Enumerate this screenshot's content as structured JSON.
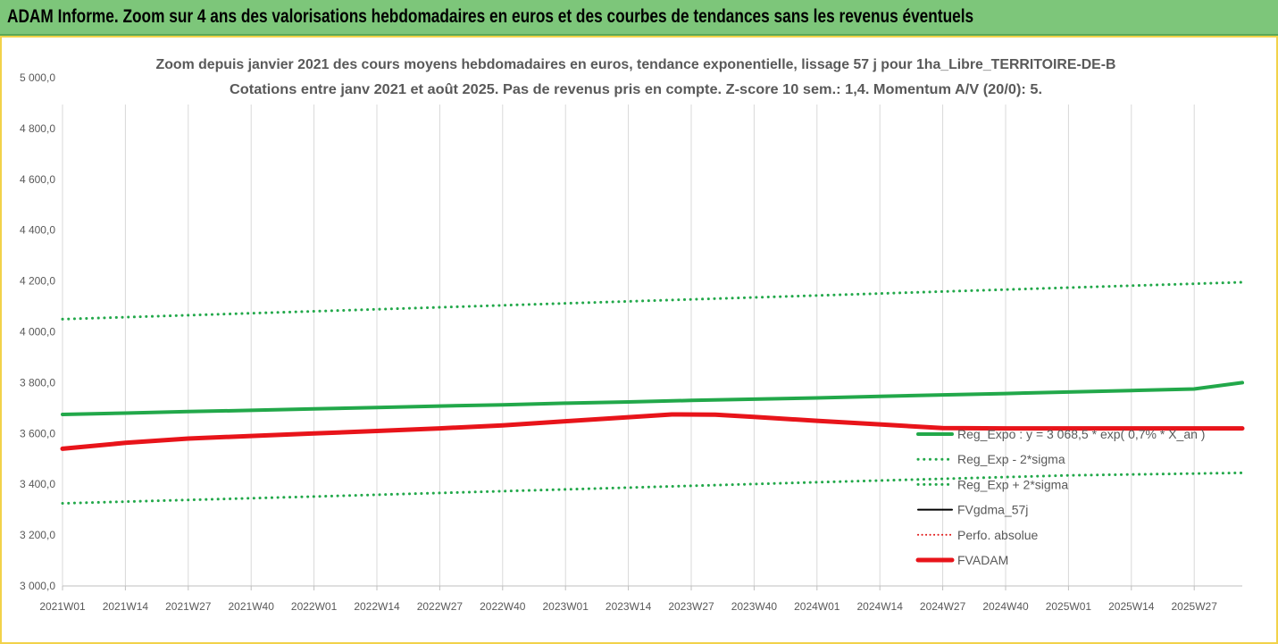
{
  "banner": {
    "text": "ADAM Informe. Zoom sur 4 ans des valorisations hebdomadaires en euros et des courbes de tendances sans les revenus éventuels",
    "color": "#7dc67a"
  },
  "chart_data": {
    "type": "line",
    "title_lines": [
      "Zoom depuis janvier 2021 des cours moyens hebdomadaires en euros, tendance exponentielle, lissage 57 j pour 1ha_Libre_TERRITOIRE-DE-B",
      "Cotations entre janv 2021 et août 2025.  Pas de revenus pris en compte. Z-score 10 sem.: 1,4. Momentum A/V (20/0): 5."
    ],
    "y_ticks": [
      "5 000,0",
      "4 800,0",
      "4 600,0",
      "4 400,0",
      "4 200,0",
      "4 000,0",
      "3 800,0",
      "3 600,0",
      "3 400,0",
      "3 200,0",
      "3 000,0"
    ],
    "ylim": [
      3000,
      5000
    ],
    "x_ticks": [
      "2021W01",
      "2021W14",
      "2021W27",
      "2021W40",
      "2022W01",
      "2022W14",
      "2022W27",
      "2022W40",
      "2023W01",
      "2023W14",
      "2023W27",
      "2023W40",
      "2024W01",
      "2024W14",
      "2024W27",
      "2024W40",
      "2025W01",
      "2025W14",
      "2025W27"
    ],
    "x_range_weeks": [
      0,
      244
    ],
    "grid": "vertical",
    "legend_position": "bottom-right",
    "series": [
      {
        "name": "Reg_Expo : y = 3 068,5 * exp( 0,7% * X_an )",
        "style": "solid",
        "color": "#22a84a",
        "width": 4,
        "x": [
          0,
          13,
          26,
          39,
          52,
          65,
          78,
          91,
          104,
          117,
          130,
          143,
          156,
          169,
          182,
          195,
          208,
          221,
          234,
          244
        ],
        "y": [
          3675,
          3680,
          3686,
          3691,
          3697,
          3702,
          3708,
          3713,
          3719,
          3724,
          3730,
          3735,
          3740,
          3746,
          3752,
          3757,
          3763,
          3769,
          3775,
          3800
        ]
      },
      {
        "name": "Reg_Exp - 2*sigma",
        "style": "dotted",
        "color": "#22a84a",
        "width": 3,
        "x": [
          0,
          52,
          104,
          156,
          208,
          244
        ],
        "y": [
          4050,
          4081,
          4112,
          4143,
          4174,
          4195
        ]
      },
      {
        "name": "Reg_Exp + 2*sigma",
        "style": "dotted",
        "color": "#22a84a",
        "width": 3,
        "x": [
          0,
          52,
          104,
          156,
          208,
          244
        ],
        "y": [
          3325,
          3352,
          3380,
          3408,
          3435,
          3445
        ]
      },
      {
        "name": "FVgdma_57j",
        "style": "solid",
        "color": "#000000",
        "width": 2,
        "x": [
          0,
          13,
          26,
          39,
          52,
          65,
          78,
          91,
          104,
          117,
          126,
          135,
          143,
          156,
          169,
          182,
          195,
          208,
          221,
          234,
          244
        ],
        "y": [
          3540,
          3563,
          3580,
          3590,
          3600,
          3610,
          3620,
          3632,
          3648,
          3664,
          3675,
          3674,
          3665,
          3650,
          3636,
          3621,
          3620,
          3620,
          3620,
          3620,
          3620
        ]
      },
      {
        "name": "Perfo. absolue",
        "style": "dotted",
        "color": "#e01010",
        "width": 2,
        "x": [
          0,
          13,
          26,
          39,
          52,
          65,
          78,
          91,
          104,
          117,
          126,
          135,
          143,
          156,
          169,
          182,
          195,
          208,
          221,
          234,
          244
        ],
        "y": [
          3540,
          3563,
          3580,
          3590,
          3600,
          3610,
          3620,
          3632,
          3648,
          3664,
          3675,
          3674,
          3665,
          3650,
          3636,
          3621,
          3620,
          3620,
          3620,
          3620,
          3620
        ]
      },
      {
        "name": "FVADAM",
        "style": "solid",
        "color": "#e8141a",
        "width": 5,
        "x": [
          0,
          13,
          26,
          39,
          52,
          65,
          78,
          91,
          104,
          117,
          126,
          135,
          143,
          156,
          169,
          182,
          195,
          208,
          221,
          234,
          244
        ],
        "y": [
          3540,
          3563,
          3580,
          3590,
          3600,
          3610,
          3620,
          3632,
          3648,
          3664,
          3675,
          3674,
          3665,
          3650,
          3636,
          3621,
          3620,
          3620,
          3620,
          3620,
          3620
        ]
      }
    ]
  }
}
